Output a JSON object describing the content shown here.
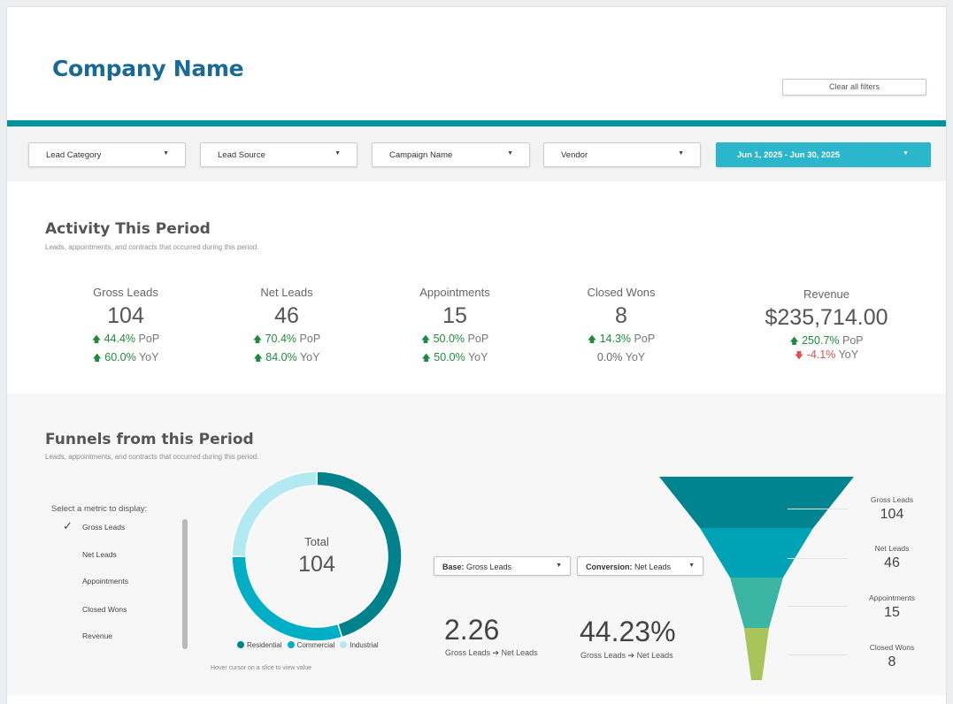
{
  "header": {
    "company_name": "Company Name",
    "clear_filters_label": "Clear all filters"
  },
  "filters": [
    {
      "label": "Lead Category"
    },
    {
      "label": "Lead Source"
    },
    {
      "label": "Campaign Name"
    },
    {
      "label": "Vendor"
    },
    {
      "label": "Jun 1, 2025 - Jun 30, 2025"
    }
  ],
  "activity": {
    "title": "Activity This Period",
    "subtitle": "Leads, appointments, and contracts that occurred during this period.",
    "kpis": [
      {
        "label": "Gross Leads",
        "value": "104",
        "pop": "44.4%",
        "pop_dir": "up",
        "pop_suffix": "PoP",
        "yoy": "60.0%",
        "yoy_dir": "up",
        "yoy_suffix": "YoY"
      },
      {
        "label": "Net Leads",
        "value": "46",
        "pop": "70.4%",
        "pop_dir": "up",
        "pop_suffix": "PoP",
        "yoy": "84.0%",
        "yoy_dir": "up",
        "yoy_suffix": "YoY"
      },
      {
        "label": "Appointments",
        "value": "15",
        "pop": "50.0%",
        "pop_dir": "up",
        "pop_suffix": "PoP",
        "yoy": "50.0%",
        "yoy_dir": "up",
        "yoy_suffix": "YoY"
      },
      {
        "label": "Closed Wons",
        "value": "8",
        "pop": "14.3%",
        "pop_dir": "up",
        "pop_suffix": "PoP",
        "yoy": "0.0%",
        "yoy_dir": "neutral",
        "yoy_suffix": "YoY"
      },
      {
        "label": "Revenue",
        "value": "$235,714.00",
        "pop": "250.7%",
        "pop_dir": "up",
        "pop_suffix": "PoP",
        "yoy": "-4.1%",
        "yoy_dir": "down",
        "yoy_suffix": "YoY"
      }
    ]
  },
  "funnels": {
    "title": "Funnels from this Period",
    "subtitle": "Leads, appointments, and contracts that occurred during this period.",
    "metric_prompt": "Select a metric to display:",
    "metrics": [
      {
        "label": "Gross Leads",
        "selected": true
      },
      {
        "label": "Net Leads",
        "selected": false
      },
      {
        "label": "Appointments",
        "selected": false
      },
      {
        "label": "Closed Wons",
        "selected": false
      },
      {
        "label": "Revenue",
        "selected": false
      }
    ],
    "donut": {
      "total_label": "Total",
      "total_value": "104",
      "hover_hint": "Hover cursor on a slice to view value"
    },
    "base_select": {
      "prefix": "Base:",
      "value": "Gross Leads"
    },
    "conversion_select": {
      "prefix": "Conversion:",
      "value": "Net Leads"
    },
    "ratio": {
      "value": "2.26",
      "caption": "Gross Leads ➔ Net Leads"
    },
    "percent": {
      "value": "44.23%",
      "caption": "Gross Leads ➔ Net Leads"
    },
    "funnel_stages": [
      {
        "label": "Gross Leads",
        "value": "104"
      },
      {
        "label": "Net Leads",
        "value": "46"
      },
      {
        "label": "Appointments",
        "value": "15"
      },
      {
        "label": "Closed Wons",
        "value": "8"
      }
    ]
  },
  "colors": {
    "teal_bar": "#00959e",
    "date_filter": "#2bb6cc",
    "residential": "#00828c",
    "commercial": "#00aec6",
    "industrial": "#b3eaf2",
    "up": "#1f8a3c",
    "down": "#d9534f",
    "funnel": [
      "#00848f",
      "#00a3b6",
      "#3bb5a4",
      "#a9c45a"
    ]
  },
  "chart_data": [
    {
      "type": "pie",
      "categories": [
        "Residential",
        "Commercial",
        "Industrial"
      ],
      "values": [
        47,
        31,
        26
      ],
      "legend": "bottom"
    },
    {
      "type": "funnel",
      "categories": [
        "Gross Leads",
        "Net Leads",
        "Appointments",
        "Closed Wons"
      ],
      "values": [
        104,
        46,
        15,
        8
      ]
    }
  ]
}
